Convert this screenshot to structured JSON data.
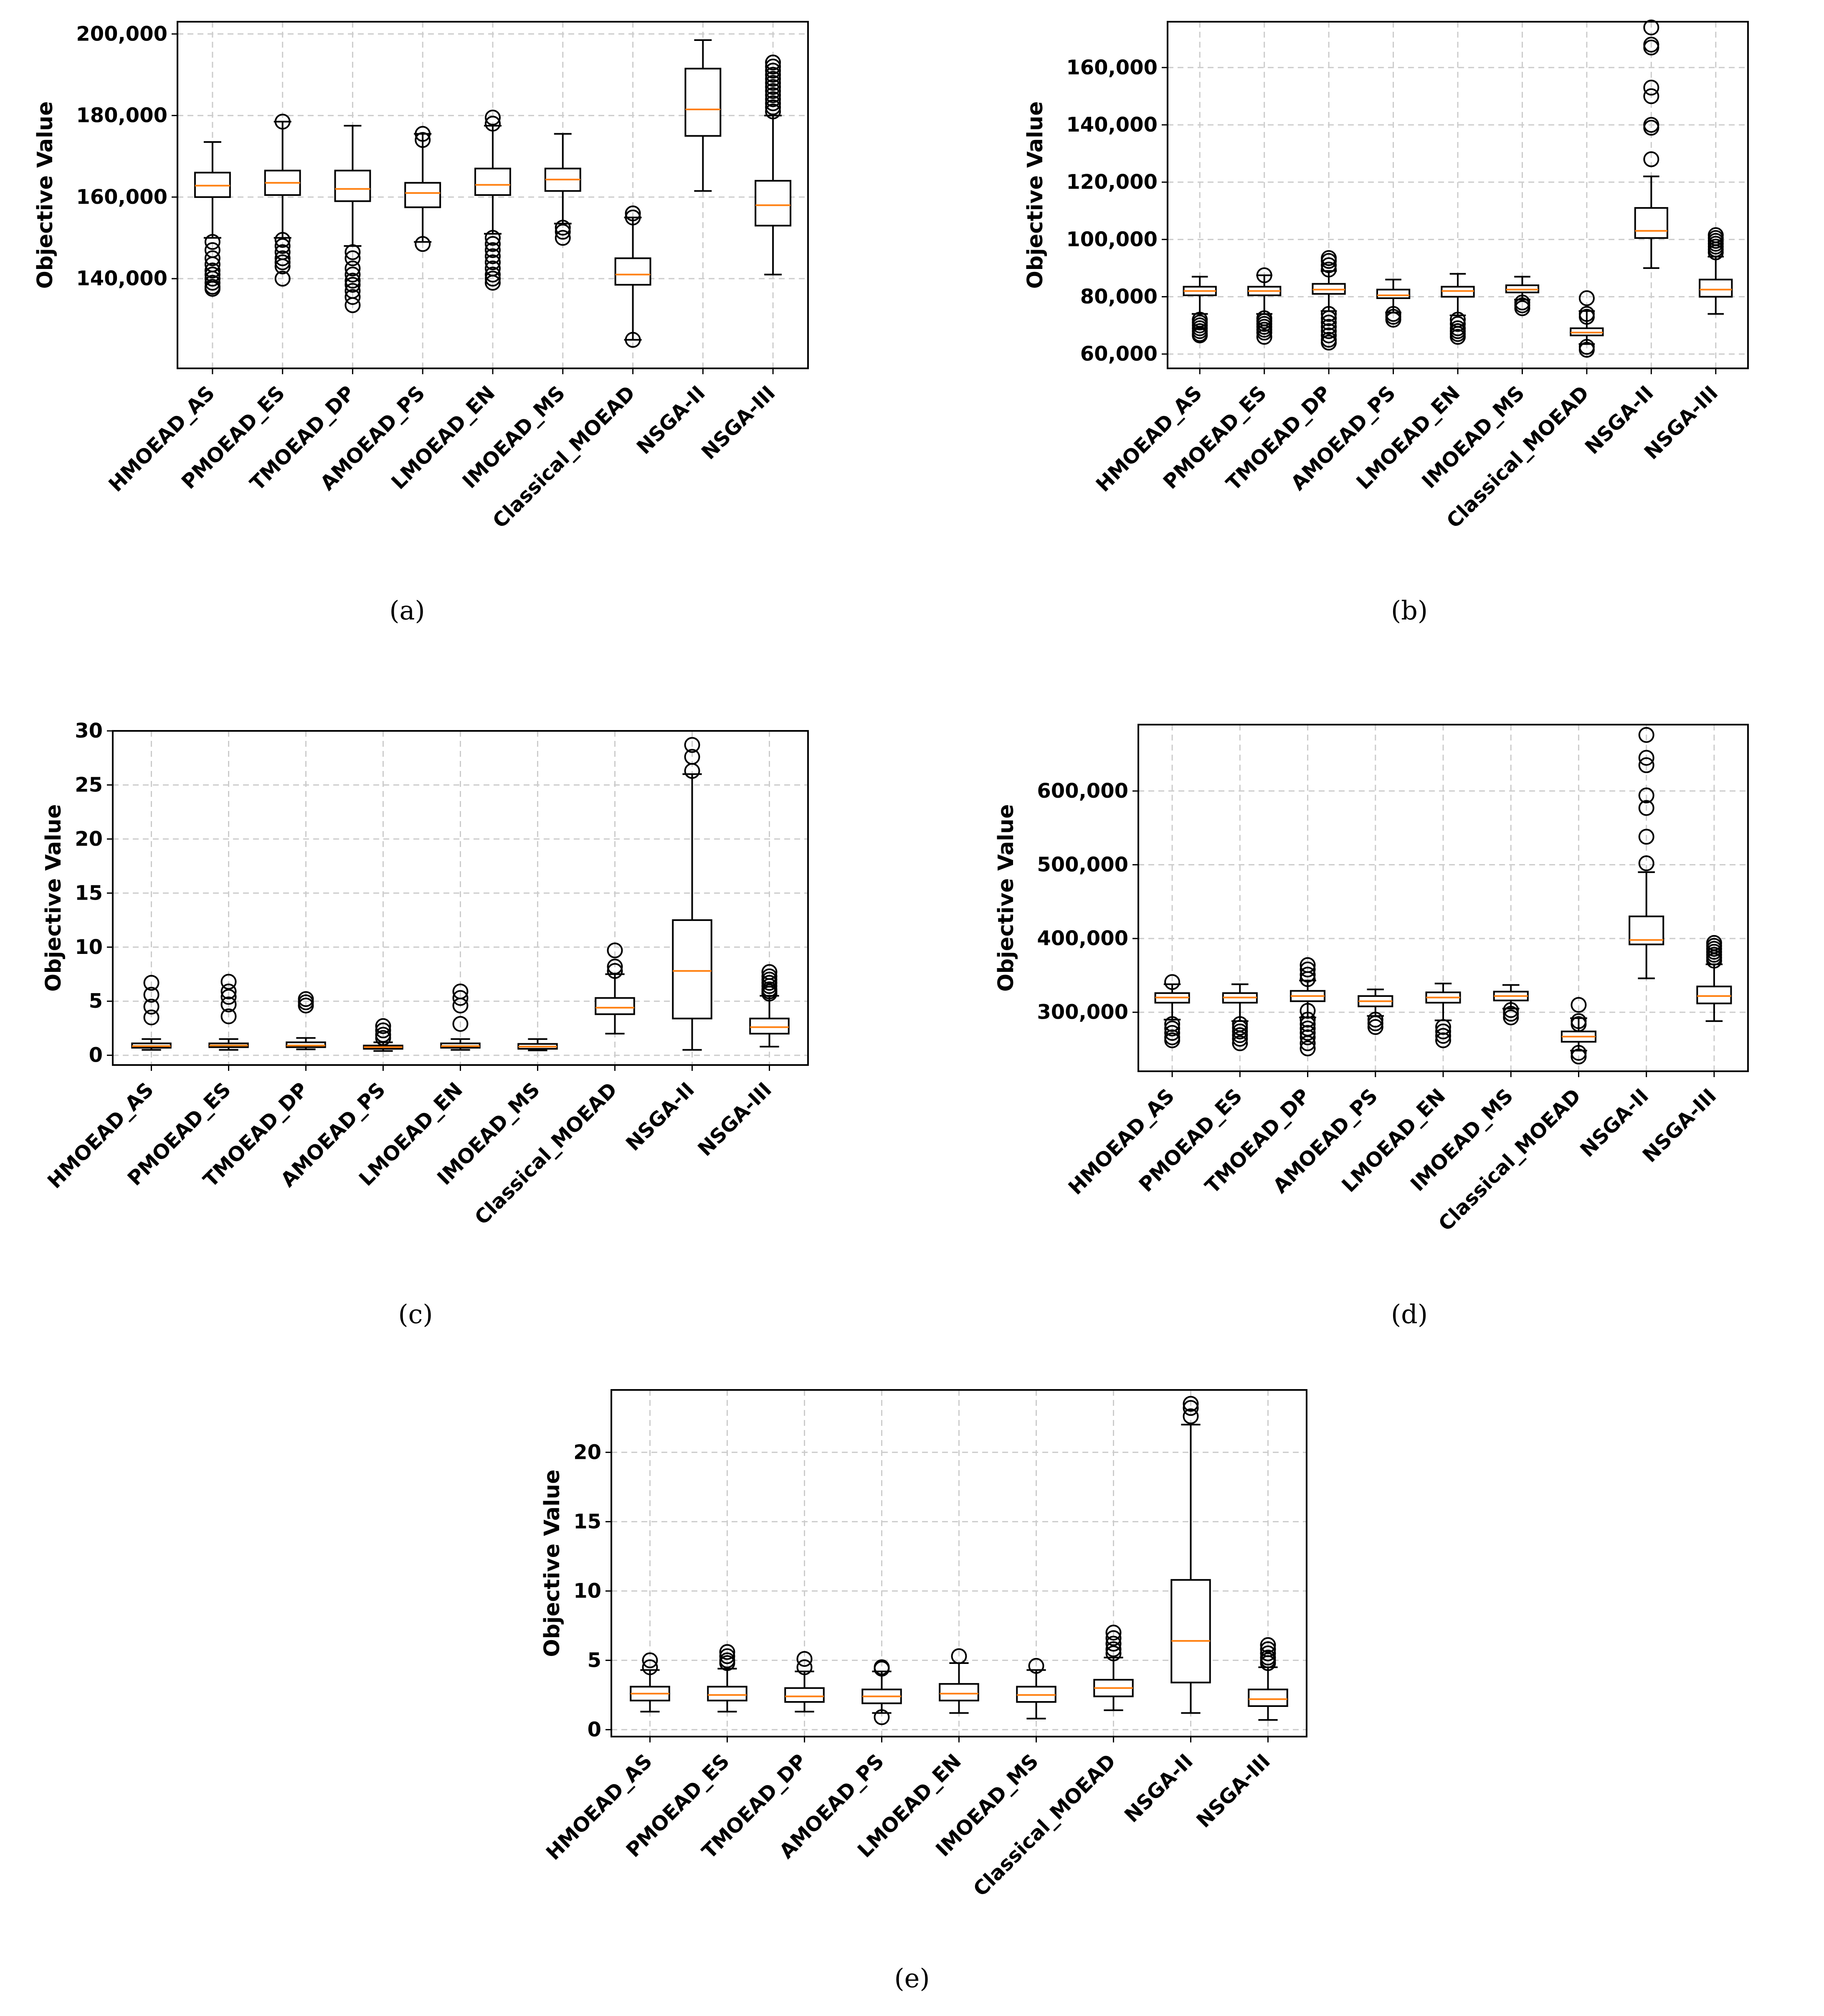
{
  "categories": [
    "HMOEAD_AS",
    "PMOEAD_ES",
    "TMOEAD_DP",
    "AMOEAD_PS",
    "LMOEAD_EN",
    "IMOEAD_MS",
    "Classical_MOEAD",
    "NSGA-II",
    "NSGA-III"
  ],
  "colors": {
    "box": "#000000",
    "median": "#ff7f0e",
    "grid": "#cccccc",
    "background": "#ffffff"
  },
  "chart_data": [
    {
      "id": "a",
      "caption": "(a)",
      "type": "boxplot",
      "ylabel": "Objective Value",
      "grid": true,
      "ylim": [
        118000,
        203000
      ],
      "yticks": [
        140000,
        160000,
        180000,
        200000
      ],
      "ytick_labels": [
        "140,000",
        "160,000",
        "180,000",
        "200,000"
      ],
      "boxes": [
        {
          "category": "HMOEAD_AS",
          "whisker_low": 150000,
          "q1": 160000,
          "median": 162800,
          "q3": 166000,
          "whisker_high": 173500,
          "outliers": [
            149000,
            147000,
            145000,
            143500,
            142000,
            141000,
            140000,
            139000,
            138000,
            137500
          ]
        },
        {
          "category": "PMOEAD_ES",
          "whisker_low": 150000,
          "q1": 160500,
          "median": 163500,
          "q3": 166500,
          "whisker_high": 178500,
          "outliers": [
            178500,
            149500,
            148000,
            146500,
            145000,
            144000,
            143000,
            140000
          ]
        },
        {
          "category": "TMOEAD_DP",
          "whisker_low": 148000,
          "q1": 159000,
          "median": 162000,
          "q3": 166500,
          "whisker_high": 177500,
          "outliers": [
            146500,
            145000,
            142500,
            141000,
            139500,
            138500,
            137000,
            135500,
            133500
          ]
        },
        {
          "category": "AMOEAD_PS",
          "whisker_low": 149000,
          "q1": 157500,
          "median": 161000,
          "q3": 163500,
          "whisker_high": 175500,
          "outliers": [
            175500,
            174000,
            148500
          ]
        },
        {
          "category": "LMOEAD_EN",
          "whisker_low": 151000,
          "q1": 160500,
          "median": 163000,
          "q3": 167000,
          "whisker_high": 177500,
          "outliers": [
            179500,
            178000,
            150000,
            148500,
            147000,
            145500,
            144000,
            142500,
            141000,
            140000,
            139000
          ]
        },
        {
          "category": "IMOEAD_MS",
          "whisker_low": 153500,
          "q1": 161500,
          "median": 164300,
          "q3": 167000,
          "whisker_high": 175500,
          "outliers": [
            152500,
            151500,
            150000
          ]
        },
        {
          "category": "Classical_MOEAD",
          "whisker_low": 125000,
          "q1": 138500,
          "median": 141000,
          "q3": 145000,
          "whisker_high": 155000,
          "outliers": [
            156000,
            155000,
            125000
          ]
        },
        {
          "category": "NSGA-II",
          "whisker_low": 161500,
          "q1": 175000,
          "median": 181500,
          "q3": 191500,
          "whisker_high": 198500,
          "outliers": []
        },
        {
          "category": "NSGA-III",
          "whisker_low": 141000,
          "q1": 153000,
          "median": 158000,
          "q3": 164000,
          "whisker_high": 180000,
          "outliers": [
            193000,
            192000,
            191000,
            190000,
            189000,
            188000,
            187000,
            186000,
            185000,
            184000,
            183000,
            182000,
            181000
          ]
        }
      ]
    },
    {
      "id": "b",
      "caption": "(b)",
      "type": "boxplot",
      "ylabel": "Objective Value",
      "grid": true,
      "ylim": [
        55000,
        176000
      ],
      "yticks": [
        60000,
        80000,
        100000,
        120000,
        140000,
        160000
      ],
      "ytick_labels": [
        "60,000",
        "80,000",
        "100,000",
        "120,000",
        "140,000",
        "160,000"
      ],
      "boxes": [
        {
          "category": "HMOEAD_AS",
          "whisker_low": 74000,
          "q1": 80500,
          "median": 82000,
          "q3": 83500,
          "whisker_high": 87000,
          "outliers": [
            72000,
            71000,
            70000,
            69000,
            68000,
            67000,
            66500
          ]
        },
        {
          "category": "PMOEAD_ES",
          "whisker_low": 74000,
          "q1": 80500,
          "median": 82000,
          "q3": 83500,
          "whisker_high": 87500,
          "outliers": [
            87500,
            72500,
            71500,
            70500,
            69500,
            68500,
            67500,
            66000
          ]
        },
        {
          "category": "TMOEAD_DP",
          "whisker_low": 75000,
          "q1": 81000,
          "median": 82500,
          "q3": 84500,
          "whisker_high": 89000,
          "outliers": [
            93500,
            92500,
            91000,
            89500,
            74000,
            72500,
            71000,
            69500,
            68000,
            66500,
            65000,
            64000
          ]
        },
        {
          "category": "AMOEAD_PS",
          "whisker_low": 74500,
          "q1": 79500,
          "median": 80500,
          "q3": 82500,
          "whisker_high": 86000,
          "outliers": [
            74000,
            73000,
            72000
          ]
        },
        {
          "category": "LMOEAD_EN",
          "whisker_low": 73500,
          "q1": 80000,
          "median": 82000,
          "q3": 83500,
          "whisker_high": 88000,
          "outliers": [
            72000,
            70500,
            69000,
            68000,
            67000,
            66000
          ]
        },
        {
          "category": "IMOEAD_MS",
          "whisker_low": 79000,
          "q1": 81500,
          "median": 82500,
          "q3": 84000,
          "whisker_high": 87000,
          "outliers": [
            78000,
            77000,
            76000
          ]
        },
        {
          "category": "Classical_MOEAD",
          "whisker_low": 63500,
          "q1": 66500,
          "median": 67500,
          "q3": 69000,
          "whisker_high": 75000,
          "outliers": [
            79500,
            74000,
            73000,
            62500,
            61500
          ]
        },
        {
          "category": "NSGA-II",
          "whisker_low": 90000,
          "q1": 100500,
          "median": 103000,
          "q3": 111000,
          "whisker_high": 122000,
          "outliers": [
            174000,
            168000,
            167000,
            153000,
            150000,
            140000,
            139000,
            128000
          ]
        },
        {
          "category": "NSGA-III",
          "whisker_low": 74000,
          "q1": 80000,
          "median": 82500,
          "q3": 86000,
          "whisker_high": 94000,
          "outliers": [
            101500,
            100500,
            99500,
            98500,
            97500,
            96500,
            95500
          ]
        }
      ]
    },
    {
      "id": "c",
      "caption": "(c)",
      "type": "boxplot",
      "ylabel": "Objective Value",
      "grid": true,
      "ylim": [
        -0.9,
        30
      ],
      "yticks": [
        0,
        5,
        10,
        15,
        20,
        25,
        30
      ],
      "ytick_labels": [
        "0",
        "5",
        "10",
        "15",
        "20",
        "25",
        "30"
      ],
      "boxes": [
        {
          "category": "HMOEAD_AS",
          "whisker_low": 0.5,
          "q1": 0.7,
          "median": 0.85,
          "q3": 1.1,
          "whisker_high": 1.5,
          "outliers": [
            6.7,
            5.6,
            4.5,
            3.5
          ]
        },
        {
          "category": "PMOEAD_ES",
          "whisker_low": 0.5,
          "q1": 0.75,
          "median": 0.9,
          "q3": 1.1,
          "whisker_high": 1.5,
          "outliers": [
            6.8,
            5.9,
            5.4,
            4.7,
            3.6
          ]
        },
        {
          "category": "TMOEAD_DP",
          "whisker_low": 0.55,
          "q1": 0.75,
          "median": 0.9,
          "q3": 1.2,
          "whisker_high": 1.6,
          "outliers": [
            5.2,
            4.9,
            4.6
          ]
        },
        {
          "category": "AMOEAD_PS",
          "whisker_low": 0.4,
          "q1": 0.6,
          "median": 0.75,
          "q3": 0.9,
          "whisker_high": 1.2,
          "outliers": [
            2.7,
            2.3,
            1.9,
            1.6
          ]
        },
        {
          "category": "LMOEAD_EN",
          "whisker_low": 0.5,
          "q1": 0.7,
          "median": 0.85,
          "q3": 1.1,
          "whisker_high": 1.5,
          "outliers": [
            5.9,
            5.3,
            4.6,
            2.9
          ]
        },
        {
          "category": "IMOEAD_MS",
          "whisker_low": 0.45,
          "q1": 0.6,
          "median": 0.8,
          "q3": 1.05,
          "whisker_high": 1.5,
          "outliers": []
        },
        {
          "category": "Classical_MOEAD",
          "whisker_low": 2.0,
          "q1": 3.8,
          "median": 4.4,
          "q3": 5.3,
          "whisker_high": 7.5,
          "outliers": [
            9.7,
            8.2,
            7.8
          ]
        },
        {
          "category": "NSGA-II",
          "whisker_low": 0.5,
          "q1": 3.4,
          "median": 7.8,
          "q3": 12.5,
          "whisker_high": 26.0,
          "outliers": [
            28.7,
            27.6,
            26.3
          ]
        },
        {
          "category": "NSGA-III",
          "whisker_low": 0.8,
          "q1": 2.0,
          "median": 2.6,
          "q3": 3.4,
          "whisker_high": 5.5,
          "outliers": [
            7.7,
            7.3,
            7.0,
            6.7,
            6.4,
            6.1,
            5.9,
            5.7
          ]
        }
      ]
    },
    {
      "id": "d",
      "caption": "(d)",
      "type": "boxplot",
      "ylabel": "Objective Value",
      "grid": true,
      "ylim": [
        220000,
        690000
      ],
      "yticks": [
        300000,
        400000,
        500000,
        600000
      ],
      "ytick_labels": [
        "300,000",
        "400,000",
        "500,000",
        "600,000"
      ],
      "boxes": [
        {
          "category": "HMOEAD_AS",
          "whisker_low": 290000,
          "q1": 313000,
          "median": 320000,
          "q3": 326000,
          "whisker_high": 338000,
          "outliers": [
            341000,
            284000,
            278000,
            272000,
            266000,
            262000
          ]
        },
        {
          "category": "PMOEAD_ES",
          "whisker_low": 288000,
          "q1": 313000,
          "median": 320000,
          "q3": 326000,
          "whisker_high": 338000,
          "outliers": [
            284000,
            279000,
            274000,
            269000,
            264000,
            258000
          ]
        },
        {
          "category": "TMOEAD_DP",
          "whisker_low": 293000,
          "q1": 315000,
          "median": 322000,
          "q3": 329000,
          "whisker_high": 343000,
          "outliers": [
            364000,
            358000,
            351000,
            345000,
            302000,
            290000,
            284000,
            278000,
            272000,
            266000,
            258000,
            251000
          ]
        },
        {
          "category": "AMOEAD_PS",
          "whisker_low": 295000,
          "q1": 308000,
          "median": 315000,
          "q3": 322000,
          "whisker_high": 331000,
          "outliers": [
            290000,
            285000,
            280000
          ]
        },
        {
          "category": "LMOEAD_EN",
          "whisker_low": 289000,
          "q1": 313000,
          "median": 320000,
          "q3": 327000,
          "whisker_high": 339000,
          "outliers": [
            280000,
            274000,
            268000,
            262000
          ]
        },
        {
          "category": "IMOEAD_MS",
          "whisker_low": 305000,
          "q1": 316000,
          "median": 322000,
          "q3": 328000,
          "whisker_high": 337000,
          "outliers": [
            303000,
            298000,
            293000
          ]
        },
        {
          "category": "Classical_MOEAD",
          "whisker_low": 248000,
          "q1": 260000,
          "median": 267000,
          "q3": 274000,
          "whisker_high": 292000,
          "outliers": [
            310000,
            288000,
            284000,
            245000,
            240000
          ]
        },
        {
          "category": "NSGA-II",
          "whisker_low": 346000,
          "q1": 392000,
          "median": 398000,
          "q3": 430000,
          "whisker_high": 490000,
          "outliers": [
            676000,
            645000,
            635000,
            594000,
            577000,
            538000,
            502000
          ]
        },
        {
          "category": "NSGA-III",
          "whisker_low": 288000,
          "q1": 312000,
          "median": 322000,
          "q3": 335000,
          "whisker_high": 365000,
          "outliers": [
            394000,
            390000,
            386000,
            382000,
            378000,
            374000,
            370000
          ]
        }
      ]
    },
    {
      "id": "e",
      "caption": "(e)",
      "type": "boxplot",
      "ylabel": "Objective Value",
      "grid": true,
      "ylim": [
        -0.5,
        24.5
      ],
      "yticks": [
        0,
        5,
        10,
        15,
        20
      ],
      "ytick_labels": [
        "0",
        "5",
        "10",
        "15",
        "20"
      ],
      "boxes": [
        {
          "category": "HMOEAD_AS",
          "whisker_low": 1.3,
          "q1": 2.1,
          "median": 2.6,
          "q3": 3.1,
          "whisker_high": 4.3,
          "outliers": [
            5.0,
            4.5
          ]
        },
        {
          "category": "PMOEAD_ES",
          "whisker_low": 1.3,
          "q1": 2.1,
          "median": 2.5,
          "q3": 3.1,
          "whisker_high": 4.4,
          "outliers": [
            5.6,
            5.3,
            5.0,
            4.8
          ]
        },
        {
          "category": "TMOEAD_DP",
          "whisker_low": 1.3,
          "q1": 2.0,
          "median": 2.4,
          "q3": 3.0,
          "whisker_high": 4.2,
          "outliers": [
            5.1,
            4.5
          ]
        },
        {
          "category": "AMOEAD_PS",
          "whisker_low": 1.2,
          "q1": 1.9,
          "median": 2.4,
          "q3": 2.9,
          "whisker_high": 4.2,
          "outliers": [
            4.5,
            4.4,
            0.9
          ]
        },
        {
          "category": "LMOEAD_EN",
          "whisker_low": 1.2,
          "q1": 2.1,
          "median": 2.6,
          "q3": 3.3,
          "whisker_high": 4.8,
          "outliers": [
            5.3
          ]
        },
        {
          "category": "IMOEAD_MS",
          "whisker_low": 0.8,
          "q1": 2.0,
          "median": 2.5,
          "q3": 3.1,
          "whisker_high": 4.3,
          "outliers": [
            4.6
          ]
        },
        {
          "category": "Classical_MOEAD",
          "whisker_low": 1.4,
          "q1": 2.4,
          "median": 3.0,
          "q3": 3.6,
          "whisker_high": 5.2,
          "outliers": [
            7.0,
            6.6,
            6.2,
            5.8,
            5.5
          ]
        },
        {
          "category": "NSGA-II",
          "whisker_low": 1.2,
          "q1": 3.4,
          "median": 6.4,
          "q3": 10.8,
          "whisker_high": 22.0,
          "outliers": [
            23.5,
            23.2,
            22.6
          ]
        },
        {
          "category": "NSGA-III",
          "whisker_low": 0.7,
          "q1": 1.7,
          "median": 2.2,
          "q3": 2.9,
          "whisker_high": 4.5,
          "outliers": [
            6.1,
            5.8,
            5.5,
            5.2,
            5.0,
            4.8
          ]
        }
      ]
    }
  ]
}
